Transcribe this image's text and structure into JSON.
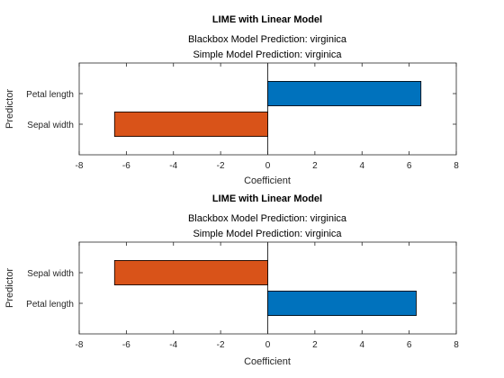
{
  "chart_data": [
    {
      "type": "bar",
      "orientation": "horizontal",
      "title": "LIME with Linear Model",
      "subtitle": [
        "Blackbox Model Prediction: virginica",
        "Simple Model Prediction: virginica"
      ],
      "xlabel": "Coefficient",
      "ylabel": "Predictor",
      "xlim": [
        -8,
        8
      ],
      "xticks": [
        -8,
        -6,
        -4,
        -2,
        0,
        2,
        4,
        6,
        8
      ],
      "categories": [
        "Petal length",
        "Sepal width"
      ],
      "values": [
        6.5,
        -6.5
      ],
      "colors": [
        "#0072BD",
        "#D95319"
      ],
      "grid": false,
      "legend": "none"
    },
    {
      "type": "bar",
      "orientation": "horizontal",
      "title": "LIME with Linear Model",
      "subtitle": [
        "Blackbox Model Prediction: virginica",
        "Simple Model Prediction: virginica"
      ],
      "xlabel": "Coefficient",
      "ylabel": "Predictor",
      "xlim": [
        -8,
        8
      ],
      "xticks": [
        -8,
        -6,
        -4,
        -2,
        0,
        2,
        4,
        6,
        8
      ],
      "categories": [
        "Sepal width",
        "Petal length"
      ],
      "values": [
        -6.5,
        6.3
      ],
      "colors": [
        "#D95319",
        "#0072BD"
      ],
      "grid": false,
      "legend": "none"
    }
  ]
}
